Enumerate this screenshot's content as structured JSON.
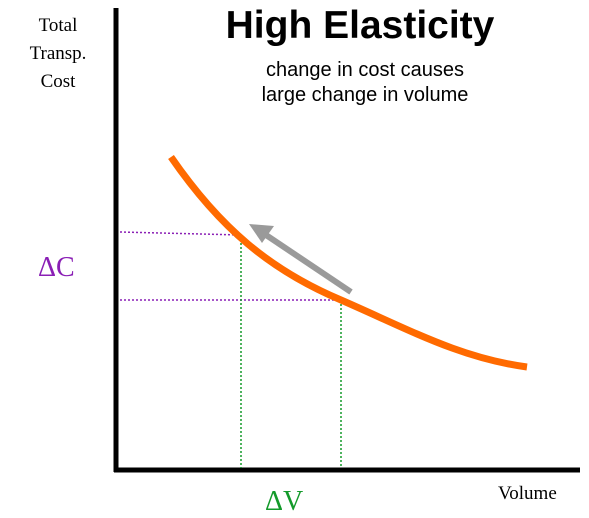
{
  "title": "High Elasticity",
  "subtitle_line1": "change in cost causes",
  "subtitle_line2": "large change in volume",
  "y_axis_label_line1": "Total",
  "y_axis_label_line2": "Transp.",
  "y_axis_label_line3": "Cost",
  "x_axis_label": "Volume",
  "delta_cost_label": "ΔC",
  "delta_volume_label": "ΔV",
  "colors": {
    "curve": "#ff6a00",
    "arrow": "#9a9a9a",
    "delta_cost": "#8a1fb5",
    "delta_volume": "#139a2a",
    "axis": "#000000"
  }
}
